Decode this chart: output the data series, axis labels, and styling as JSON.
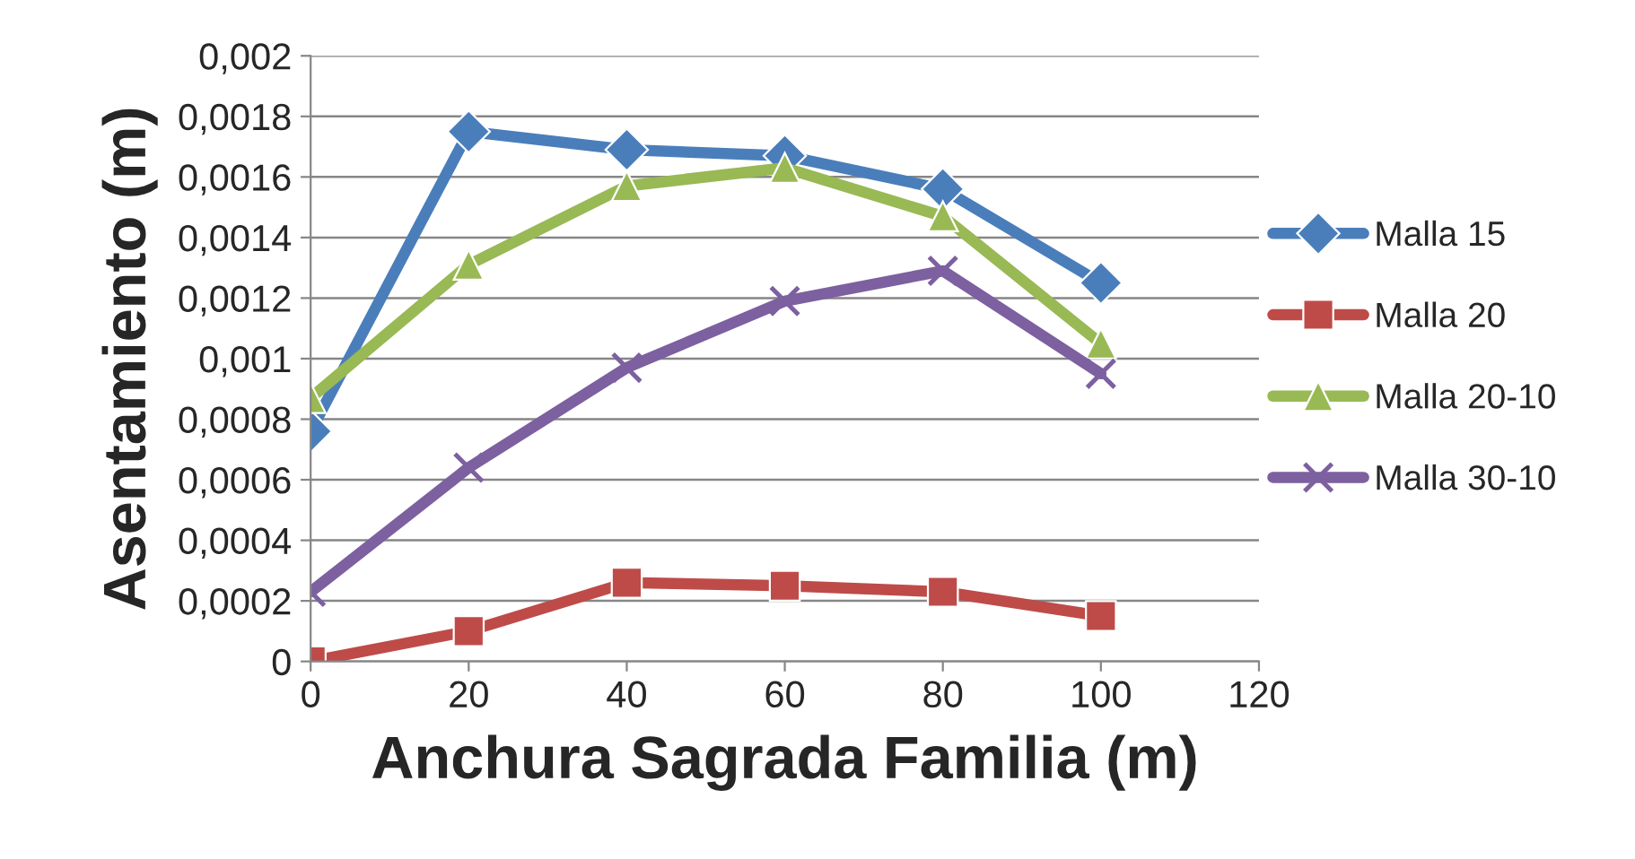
{
  "chart_data": {
    "type": "line",
    "xlabel": "Anchura Sagrada Familia (m)",
    "ylabel": "Asentamiento (m)",
    "x": [
      0,
      20,
      40,
      60,
      80,
      100
    ],
    "series": [
      {
        "name": "Malla 15",
        "color": "#4a7ebb",
        "marker": "diamond",
        "values": [
          0.00076,
          0.00175,
          0.00169,
          0.00167,
          0.00156,
          0.00125
        ]
      },
      {
        "name": "Malla 20",
        "color": "#be4b48",
        "marker": "square",
        "values": [
          0.0,
          0.0001,
          0.00026,
          0.00025,
          0.00023,
          0.00015
        ]
      },
      {
        "name": "Malla 20-10",
        "color": "#98b954",
        "marker": "triangle",
        "values": [
          0.00087,
          0.00131,
          0.00157,
          0.00163,
          0.00147,
          0.00105
        ]
      },
      {
        "name": "Malla 30-10",
        "color": "#7d60a0",
        "marker": "cross",
        "values": [
          0.00023,
          0.00064,
          0.00097,
          0.00119,
          0.00129,
          0.00095
        ]
      }
    ],
    "xlim": [
      0,
      120
    ],
    "xticks": [
      0,
      20,
      40,
      60,
      80,
      100,
      120
    ],
    "ylim": [
      0,
      0.002
    ],
    "yticks": [
      0,
      {
        "value": 0.0002,
        "label": "0,0002"
      },
      {
        "value": 0.0004,
        "label": "0,0004"
      },
      {
        "value": 0.0006,
        "label": "0,0006"
      },
      {
        "value": 0.0008,
        "label": "0,0008"
      },
      {
        "value": 0.001,
        "label": "0,001"
      },
      {
        "value": 0.0012,
        "label": "0,0012"
      },
      {
        "value": 0.0014,
        "label": "0,0014"
      },
      {
        "value": 0.0016,
        "label": "0,0016"
      },
      {
        "value": 0.0018,
        "label": "0,0018"
      },
      {
        "value": 0.002,
        "label": "0,002"
      }
    ],
    "grid": "y",
    "legend": "right",
    "line_style": "solid"
  }
}
